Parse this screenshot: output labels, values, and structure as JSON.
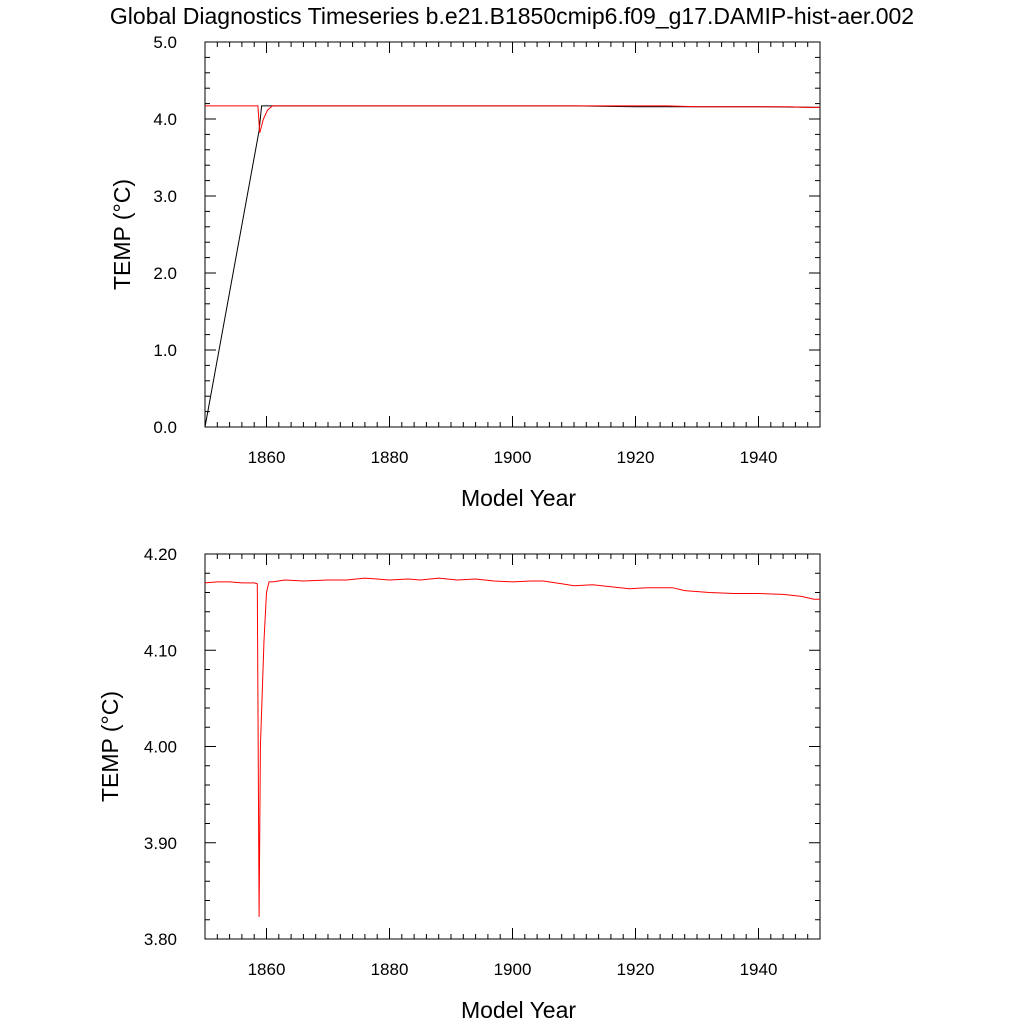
{
  "title": "Global Diagnostics Timeseries b.e21.B1850cmip6.f09_g17.DAMIP-hist-aer.002",
  "chart_data": [
    {
      "type": "line",
      "xlabel": "Model Year",
      "ylabel": "TEMP (°C)",
      "xlim": [
        1850,
        1950
      ],
      "ylim": [
        0.0,
        5.0
      ],
      "x_ticks": [
        1860,
        1880,
        1900,
        1920,
        1940
      ],
      "x_tick_labels": [
        "1860",
        "1880",
        "1900",
        "1920",
        "1940"
      ],
      "y_ticks": [
        0.0,
        1.0,
        2.0,
        3.0,
        4.0,
        5.0
      ],
      "y_tick_labels": [
        "0.0",
        "1.0",
        "2.0",
        "3.0",
        "4.0",
        "5.0"
      ],
      "grid": false,
      "series": [
        {
          "color": "#000000",
          "x": [
            1850.0,
            1858.8,
            1859.2,
            1859.6,
            1860.0,
            1865.0,
            1870.0,
            1880.0,
            1890.0,
            1900.0,
            1910.0,
            1920.0,
            1930.0,
            1940.0,
            1950.0
          ],
          "y": [
            0.0,
            3.85,
            4.17,
            4.17,
            4.17,
            4.17,
            4.17,
            4.17,
            4.17,
            4.17,
            4.17,
            4.16,
            4.16,
            4.16,
            4.15
          ]
        },
        {
          "color": "#ff0000",
          "x": [
            1850.0,
            1852.0,
            1854.0,
            1856.0,
            1858.0,
            1858.6,
            1858.9,
            1859.5,
            1860.2,
            1861.0,
            1865.0,
            1870.0,
            1875.0,
            1880.0,
            1885.0,
            1890.0,
            1895.0,
            1900.0,
            1905.0,
            1910.0,
            1915.0,
            1920.0,
            1925.0,
            1930.0,
            1935.0,
            1940.0,
            1945.0,
            1948.0,
            1950.0
          ],
          "y": [
            4.17,
            4.17,
            4.17,
            4.17,
            4.17,
            4.17,
            3.82,
            4.0,
            4.12,
            4.17,
            4.17,
            4.17,
            4.17,
            4.17,
            4.17,
            4.17,
            4.17,
            4.17,
            4.17,
            4.17,
            4.17,
            4.17,
            4.17,
            4.16,
            4.16,
            4.16,
            4.16,
            4.15,
            4.15
          ]
        }
      ]
    },
    {
      "type": "line",
      "xlabel": "Model Year",
      "ylabel": "TEMP (°C)",
      "xlim": [
        1850,
        1950
      ],
      "ylim": [
        3.8,
        4.2
      ],
      "x_ticks": [
        1860,
        1880,
        1900,
        1920,
        1940
      ],
      "x_tick_labels": [
        "1860",
        "1880",
        "1900",
        "1920",
        "1940"
      ],
      "y_ticks": [
        3.8,
        3.9,
        4.0,
        4.1,
        4.2
      ],
      "y_tick_labels": [
        "3.80",
        "3.90",
        "4.00",
        "4.10",
        "4.20"
      ],
      "grid": false,
      "series": [
        {
          "color": "#ff0000",
          "x": [
            1850.0,
            1852.0,
            1854.0,
            1856.0,
            1858.0,
            1858.5,
            1858.8,
            1859.0,
            1859.6,
            1860.0,
            1860.4,
            1861.0,
            1863.0,
            1866.0,
            1870.0,
            1873.0,
            1876.0,
            1880.0,
            1883.0,
            1885.0,
            1888.0,
            1891.0,
            1894.0,
            1897.0,
            1900.0,
            1903.0,
            1905.0,
            1908.0,
            1910.0,
            1913.0,
            1916.0,
            1919.0,
            1922.0,
            1926.0,
            1928.0,
            1932.0,
            1936.0,
            1940.0,
            1944.0,
            1947.0,
            1949.0,
            1950.0
          ],
          "y": [
            4.17,
            4.171,
            4.171,
            4.17,
            4.17,
            4.169,
            3.823,
            4.0,
            4.11,
            4.16,
            4.171,
            4.171,
            4.173,
            4.172,
            4.173,
            4.173,
            4.175,
            4.173,
            4.174,
            4.173,
            4.175,
            4.173,
            4.174,
            4.172,
            4.171,
            4.172,
            4.172,
            4.169,
            4.167,
            4.168,
            4.166,
            4.164,
            4.165,
            4.165,
            4.162,
            4.16,
            4.159,
            4.159,
            4.158,
            4.156,
            4.153,
            4.153
          ]
        }
      ]
    }
  ]
}
